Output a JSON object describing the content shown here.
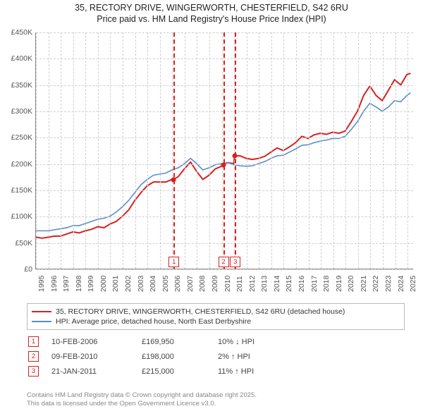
{
  "title": {
    "line1": "35, RECTORY DRIVE, WINGERWORTH, CHESTERFIELD, S42 6RU",
    "line2": "Price paid vs. HM Land Registry's House Price Index (HPI)",
    "fontsize": 12.5,
    "color": "#222222"
  },
  "chart": {
    "type": "line",
    "background_color": "#ffffff",
    "grid_color": "#cfcfcf",
    "axis_color": "#888888",
    "label_color": "#555555",
    "label_fontsize": 10.5,
    "xlim": [
      1995,
      2025.5
    ],
    "ylim": [
      0,
      450000
    ],
    "ytick_step": 50000,
    "yticks": [
      {
        "v": 0,
        "label": "£0"
      },
      {
        "v": 50000,
        "label": "£50K"
      },
      {
        "v": 100000,
        "label": "£100K"
      },
      {
        "v": 150000,
        "label": "£150K"
      },
      {
        "v": 200000,
        "label": "£200K"
      },
      {
        "v": 250000,
        "label": "£250K"
      },
      {
        "v": 300000,
        "label": "£300K"
      },
      {
        "v": 350000,
        "label": "£350K"
      },
      {
        "v": 400000,
        "label": "£400K"
      },
      {
        "v": 450000,
        "label": "£450K"
      }
    ],
    "xticks": [
      1995,
      1996,
      1997,
      1998,
      1999,
      2000,
      2001,
      2002,
      2003,
      2004,
      2005,
      2006,
      2007,
      2008,
      2009,
      2010,
      2011,
      2012,
      2013,
      2014,
      2015,
      2016,
      2017,
      2018,
      2019,
      2020,
      2021,
      2022,
      2023,
      2024,
      2025
    ],
    "series": [
      {
        "name": "35, RECTORY DRIVE, WINGERWORTH, CHESTERFIELD, S42 6RU (detached house)",
        "color": "#d92020",
        "line_width": 2.0,
        "data": [
          [
            1995,
            60000
          ],
          [
            1995.5,
            58000
          ],
          [
            1996,
            60000
          ],
          [
            1996.5,
            62000
          ],
          [
            1997,
            62000
          ],
          [
            1997.5,
            66000
          ],
          [
            1998,
            70000
          ],
          [
            1998.5,
            68000
          ],
          [
            1999,
            72000
          ],
          [
            1999.5,
            75000
          ],
          [
            2000,
            80000
          ],
          [
            2000.5,
            78000
          ],
          [
            2001,
            85000
          ],
          [
            2001.5,
            90000
          ],
          [
            2002,
            100000
          ],
          [
            2002.5,
            112000
          ],
          [
            2003,
            130000
          ],
          [
            2003.5,
            145000
          ],
          [
            2004,
            158000
          ],
          [
            2004.5,
            165000
          ],
          [
            2005,
            165000
          ],
          [
            2005.5,
            165000
          ],
          [
            2006,
            170000
          ],
          [
            2006.11,
            169950
          ],
          [
            2006.5,
            175000
          ],
          [
            2007,
            190000
          ],
          [
            2007.5,
            203000
          ],
          [
            2008,
            185000
          ],
          [
            2008.5,
            170000
          ],
          [
            2009,
            178000
          ],
          [
            2009.5,
            190000
          ],
          [
            2010,
            195000
          ],
          [
            2010.11,
            198000
          ],
          [
            2010.5,
            202000
          ],
          [
            2011,
            200000
          ],
          [
            2011.06,
            215000
          ],
          [
            2011.5,
            215000
          ],
          [
            2012,
            210000
          ],
          [
            2012.5,
            208000
          ],
          [
            2013,
            210000
          ],
          [
            2013.5,
            214000
          ],
          [
            2014,
            222000
          ],
          [
            2014.5,
            230000
          ],
          [
            2015,
            225000
          ],
          [
            2015.5,
            232000
          ],
          [
            2016,
            240000
          ],
          [
            2016.5,
            252000
          ],
          [
            2017,
            248000
          ],
          [
            2017.5,
            255000
          ],
          [
            2018,
            258000
          ],
          [
            2018.5,
            256000
          ],
          [
            2019,
            260000
          ],
          [
            2019.5,
            258000
          ],
          [
            2020,
            262000
          ],
          [
            2020.5,
            280000
          ],
          [
            2021,
            300000
          ],
          [
            2021.5,
            330000
          ],
          [
            2022,
            348000
          ],
          [
            2022.5,
            330000
          ],
          [
            2023,
            320000
          ],
          [
            2023.5,
            340000
          ],
          [
            2024,
            360000
          ],
          [
            2024.5,
            350000
          ],
          [
            2025,
            370000
          ],
          [
            2025.3,
            372000
          ]
        ]
      },
      {
        "name": "HPI: Average price, detached house, North East Derbyshire",
        "color": "#5a8ec9",
        "line_width": 1.6,
        "data": [
          [
            1995,
            72000
          ],
          [
            1995.5,
            72000
          ],
          [
            1996,
            72000
          ],
          [
            1996.5,
            74000
          ],
          [
            1997,
            76000
          ],
          [
            1997.5,
            78000
          ],
          [
            1998,
            82000
          ],
          [
            1998.5,
            82000
          ],
          [
            1999,
            86000
          ],
          [
            1999.5,
            90000
          ],
          [
            2000,
            94000
          ],
          [
            2000.5,
            96000
          ],
          [
            2001,
            100000
          ],
          [
            2001.5,
            108000
          ],
          [
            2002,
            118000
          ],
          [
            2002.5,
            130000
          ],
          [
            2003,
            145000
          ],
          [
            2003.5,
            160000
          ],
          [
            2004,
            170000
          ],
          [
            2004.5,
            178000
          ],
          [
            2005,
            180000
          ],
          [
            2005.5,
            182000
          ],
          [
            2006,
            188000
          ],
          [
            2006.5,
            192000
          ],
          [
            2007,
            200000
          ],
          [
            2007.5,
            210000
          ],
          [
            2008,
            200000
          ],
          [
            2008.5,
            188000
          ],
          [
            2009,
            192000
          ],
          [
            2009.5,
            198000
          ],
          [
            2010,
            200000
          ],
          [
            2010.5,
            202000
          ],
          [
            2011,
            198000
          ],
          [
            2011.5,
            196000
          ],
          [
            2012,
            195000
          ],
          [
            2012.5,
            196000
          ],
          [
            2013,
            200000
          ],
          [
            2013.5,
            204000
          ],
          [
            2014,
            210000
          ],
          [
            2014.5,
            215000
          ],
          [
            2015,
            216000
          ],
          [
            2015.5,
            222000
          ],
          [
            2016,
            228000
          ],
          [
            2016.5,
            235000
          ],
          [
            2017,
            236000
          ],
          [
            2017.5,
            240000
          ],
          [
            2018,
            243000
          ],
          [
            2018.5,
            245000
          ],
          [
            2019,
            248000
          ],
          [
            2019.5,
            248000
          ],
          [
            2020,
            252000
          ],
          [
            2020.5,
            265000
          ],
          [
            2021,
            280000
          ],
          [
            2021.5,
            300000
          ],
          [
            2022,
            315000
          ],
          [
            2022.5,
            308000
          ],
          [
            2023,
            300000
          ],
          [
            2023.5,
            308000
          ],
          [
            2024,
            320000
          ],
          [
            2024.5,
            318000
          ],
          [
            2025,
            330000
          ],
          [
            2025.3,
            335000
          ]
        ]
      }
    ],
    "markers": [
      {
        "id": "1",
        "x": 2006.11,
        "color": "#d92020"
      },
      {
        "id": "2",
        "x": 2010.11,
        "color": "#d92020"
      },
      {
        "id": "3",
        "x": 2011.06,
        "color": "#d92020"
      }
    ],
    "points": [
      {
        "x": 2006.11,
        "y": 169950,
        "color": "#d92020"
      },
      {
        "x": 2010.11,
        "y": 198000,
        "color": "#d92020"
      },
      {
        "x": 2011.06,
        "y": 215000,
        "color": "#d92020"
      }
    ]
  },
  "legend": {
    "border_color": "#bbbbbb",
    "fontsize": 10.5,
    "items": [
      {
        "color": "#d92020",
        "label": "35, RECTORY DRIVE, WINGERWORTH, CHESTERFIELD, S42 6RU (detached house)"
      },
      {
        "color": "#5a8ec9",
        "label": "HPI: Average price, detached house, North East Derbyshire"
      }
    ]
  },
  "transactions": {
    "rows": [
      {
        "id": "1",
        "badge_color": "#d92020",
        "date": "10-FEB-2006",
        "price": "£169,950",
        "delta": "10% ↓ HPI"
      },
      {
        "id": "2",
        "badge_color": "#d92020",
        "date": "09-FEB-2010",
        "price": "£198,000",
        "delta": "2% ↑ HPI"
      },
      {
        "id": "3",
        "badge_color": "#d92020",
        "date": "21-JAN-2011",
        "price": "£215,000",
        "delta": "11% ↑ HPI"
      }
    ]
  },
  "footer": {
    "line1": "Contains HM Land Registry data © Crown copyright and database right 2025.",
    "line2": "This data is licensed under the Open Government Licence v3.0.",
    "color": "#888888",
    "fontsize": 9.5
  }
}
